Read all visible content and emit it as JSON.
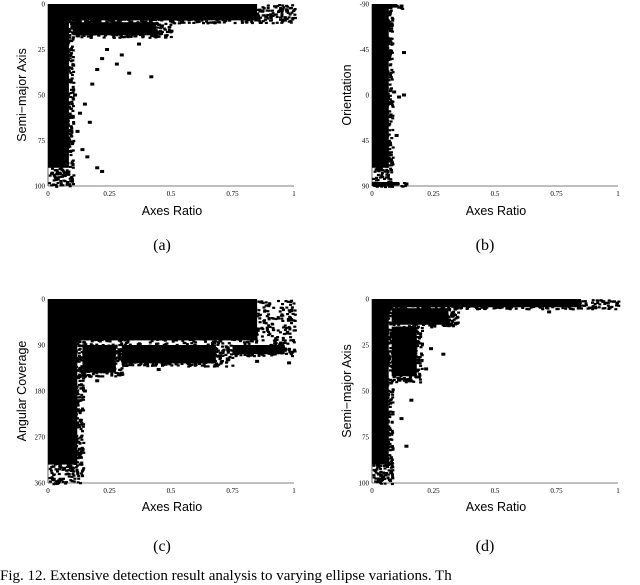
{
  "figure": {
    "caption_visible": "Fig. 12.  Extensive detection result analysis to varying ellipse variations.  Th"
  },
  "chart_data": [
    {
      "id": "a",
      "type": "scatter",
      "sublabel": "(a)",
      "xlabel": "Axes Ratio",
      "ylabel": "Semi−major Axis",
      "xlim": [
        0,
        1
      ],
      "ylim": [
        0,
        100
      ],
      "y_inverted": true,
      "x_ticks": [
        "0",
        "0.25",
        "0.5",
        "0.75",
        "1"
      ],
      "y_ticks": [
        "0",
        "25",
        "50",
        "75",
        "100"
      ],
      "x_tick_values": [
        0,
        0.25,
        0.5,
        0.75,
        1
      ],
      "y_tick_values": [
        0,
        25,
        50,
        75,
        100
      ],
      "density_description": "dense near x<0.1 for all y; band along top (y<12) to x=1",
      "regions": [
        {
          "x": [
            0,
            0.1
          ],
          "y": [
            0,
            100
          ]
        },
        {
          "x": [
            0,
            1
          ],
          "y": [
            0,
            10
          ]
        },
        {
          "x": [
            0.1,
            0.5
          ],
          "y": [
            10,
            18
          ]
        }
      ],
      "points": [
        [
          0.37,
          22
        ],
        [
          0.42,
          40
        ],
        [
          0.33,
          38
        ],
        [
          0.3,
          28
        ],
        [
          0.22,
          30
        ],
        [
          0.2,
          36
        ],
        [
          0.18,
          44
        ],
        [
          0.15,
          55
        ],
        [
          0.17,
          65
        ],
        [
          0.12,
          70
        ],
        [
          0.14,
          80
        ],
        [
          0.16,
          84
        ],
        [
          0.2,
          90
        ],
        [
          0.22,
          92
        ],
        [
          0.13,
          60
        ],
        [
          0.11,
          50
        ],
        [
          0.24,
          25
        ],
        [
          0.28,
          33
        ]
      ]
    },
    {
      "id": "b",
      "type": "scatter",
      "sublabel": "(b)",
      "xlabel": "Axes Ratio",
      "ylabel": "Orientation",
      "xlim": [
        0,
        1
      ],
      "ylim": [
        -90,
        90
      ],
      "y_inverted": true,
      "x_ticks": [
        "0",
        "0.25",
        "0.5",
        "0.75",
        "1"
      ],
      "y_ticks": [
        "-90",
        "-45",
        "0",
        "45",
        "90"
      ],
      "x_tick_values": [
        0,
        0.25,
        0.5,
        0.75,
        1
      ],
      "y_tick_values": [
        -90,
        -45,
        0,
        45,
        90
      ],
      "density_description": "dense near x<0.08 across all orientations",
      "regions": [
        {
          "x": [
            0,
            0.08
          ],
          "y": [
            -90,
            90
          ]
        },
        {
          "x": [
            0,
            0.12
          ],
          "y": [
            -90,
            -86
          ]
        },
        {
          "x": [
            0,
            0.13
          ],
          "y": [
            86,
            90
          ]
        }
      ],
      "points": [
        [
          0.13,
          -42
        ],
        [
          0.09,
          -3
        ],
        [
          0.13,
          0
        ],
        [
          0.11,
          2
        ],
        [
          0.14,
          88
        ],
        [
          0.12,
          -88
        ],
        [
          0.1,
          40
        ]
      ]
    },
    {
      "id": "c",
      "type": "scatter",
      "sublabel": "(c)",
      "xlabel": "Axes Ratio",
      "ylabel": "Angular Coverage",
      "xlim": [
        0,
        1
      ],
      "ylim": [
        0,
        360
      ],
      "y_inverted": true,
      "x_ticks": [
        "0",
        "0.25",
        "0.5",
        "0.75",
        "1"
      ],
      "y_ticks": [
        "0",
        "90",
        "180",
        "270",
        "360"
      ],
      "x_tick_values": [
        0,
        0.25,
        0.5,
        0.75,
        1
      ],
      "y_tick_values": [
        0,
        90,
        180,
        270,
        360
      ],
      "density_description": "dense x<0.14 for all coverage; dense upper block for coverage<~130 across x",
      "regions": [
        {
          "x": [
            0,
            0.14
          ],
          "y": [
            0,
            360
          ]
        },
        {
          "x": [
            0,
            1
          ],
          "y": [
            0,
            90
          ]
        },
        {
          "x": [
            0.14,
            0.3
          ],
          "y": [
            90,
            150
          ]
        },
        {
          "x": [
            0.3,
            0.75
          ],
          "y": [
            90,
            130
          ]
        },
        {
          "x": [
            0.75,
            1
          ],
          "y": [
            90,
            110
          ]
        }
      ],
      "points": [
        [
          0.2,
          160
        ],
        [
          0.3,
          145
        ],
        [
          0.45,
          138
        ],
        [
          0.6,
          128
        ],
        [
          0.85,
          122
        ],
        [
          0.98,
          125
        ],
        [
          0.15,
          180
        ]
      ]
    },
    {
      "id": "d",
      "type": "scatter",
      "sublabel": "(d)",
      "xlabel": "Axes Ratio",
      "ylabel": "Semi−major Axis",
      "xlim": [
        0,
        1
      ],
      "ylim": [
        0,
        100
      ],
      "y_inverted": true,
      "x_ticks": [
        "0",
        "0.25",
        "0.5",
        "0.75",
        "1"
      ],
      "y_ticks": [
        "0",
        "25",
        "50",
        "75",
        "100"
      ],
      "x_tick_values": [
        0,
        0.25,
        0.5,
        0.75,
        1
      ],
      "y_tick_values": [
        0,
        25,
        50,
        75,
        100
      ],
      "density_description": "dense x<0.08 for all y; thick band along top y<5 to x=1; cone to x~0.2",
      "regions": [
        {
          "x": [
            0,
            0.08
          ],
          "y": [
            0,
            100
          ]
        },
        {
          "x": [
            0,
            1
          ],
          "y": [
            0,
            5
          ]
        },
        {
          "x": [
            0.08,
            0.35
          ],
          "y": [
            5,
            15
          ]
        },
        {
          "x": [
            0.08,
            0.2
          ],
          "y": [
            15,
            45
          ]
        }
      ],
      "points": [
        [
          0.24,
          27
        ],
        [
          0.29,
          30
        ],
        [
          0.22,
          38
        ],
        [
          0.16,
          55
        ],
        [
          0.14,
          80
        ],
        [
          0.12,
          65
        ],
        [
          0.72,
          7
        ],
        [
          0.55,
          5
        ]
      ]
    }
  ]
}
